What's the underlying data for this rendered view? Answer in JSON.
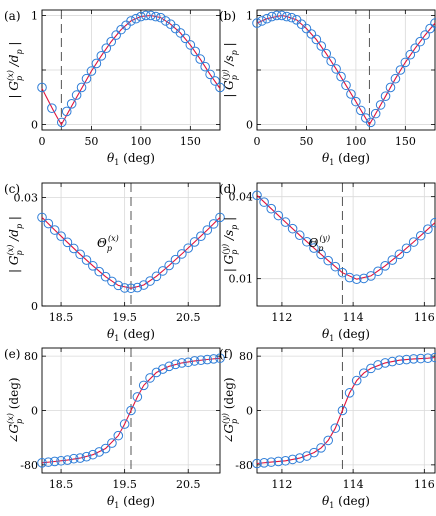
{
  "chart_data": [
    {
      "panel": "(a)",
      "type": "line",
      "xlabel": "θ1 (deg)",
      "ylabel": "|G_p^(x)/d_p|",
      "xlim": [
        0,
        180
      ],
      "ylim": [
        -0.05,
        1.05
      ],
      "xticks": [
        0,
        50,
        100,
        150
      ],
      "yticks": [
        0,
        0.5,
        1
      ],
      "xtick_labels": [
        "0",
        "50",
        "100",
        "150"
      ],
      "ytick_labels": [
        "0",
        "",
        "1"
      ],
      "vline": 19.6,
      "grid": true,
      "series": [
        {
          "style": "solid red line",
          "x": [
            0,
            4,
            8,
            12,
            16,
            19.6,
            24,
            30,
            40,
            50,
            60,
            70,
            80,
            90,
            100,
            110,
            120,
            130,
            140,
            150,
            160,
            170,
            180
          ],
          "y": [
            0.33,
            0.26,
            0.19,
            0.12,
            0.055,
            0.0,
            0.07,
            0.17,
            0.33,
            0.49,
            0.63,
            0.76,
            0.87,
            0.95,
            0.99,
            1.0,
            0.98,
            0.92,
            0.84,
            0.73,
            0.6,
            0.46,
            0.33
          ]
        },
        {
          "style": "blue circles",
          "x": [
            0,
            10,
            20,
            25,
            30,
            35,
            40,
            45,
            50,
            55,
            60,
            65,
            70,
            75,
            80,
            85,
            90,
            95,
            100,
            105,
            110,
            115,
            120,
            125,
            130,
            135,
            140,
            145,
            150,
            155,
            160,
            165,
            170,
            175,
            180
          ],
          "y": [
            0.34,
            0.15,
            0.02,
            0.12,
            0.19,
            0.27,
            0.34,
            0.42,
            0.49,
            0.56,
            0.63,
            0.7,
            0.76,
            0.82,
            0.87,
            0.91,
            0.95,
            0.97,
            0.99,
            1.0,
            1.0,
            0.99,
            0.98,
            0.95,
            0.92,
            0.88,
            0.84,
            0.79,
            0.73,
            0.67,
            0.6,
            0.53,
            0.46,
            0.4,
            0.34
          ]
        }
      ]
    },
    {
      "panel": "(b)",
      "type": "line",
      "xlabel": "θ1 (deg)",
      "ylabel": "|G_p^(y)/s_p|",
      "xlim": [
        0,
        180
      ],
      "ylim": [
        -0.05,
        1.05
      ],
      "xticks": [
        0,
        50,
        100,
        150
      ],
      "yticks": [
        0,
        0.5,
        1
      ],
      "xtick_labels": [
        "0",
        "50",
        "100",
        "150"
      ],
      "ytick_labels": [
        "0",
        "",
        "1"
      ],
      "vline": 113.7,
      "grid": true,
      "series": [
        {
          "style": "solid red line",
          "x": [
            0,
            10,
            20,
            25,
            30,
            40,
            50,
            60,
            70,
            80,
            90,
            100,
            113.7,
            120,
            130,
            140,
            150,
            160,
            170,
            180
          ],
          "y": [
            0.93,
            0.97,
            0.99,
            1.0,
            0.99,
            0.96,
            0.88,
            0.78,
            0.65,
            0.51,
            0.36,
            0.21,
            0.0,
            0.1,
            0.26,
            0.42,
            0.57,
            0.7,
            0.82,
            0.93
          ]
        },
        {
          "style": "blue circles",
          "x": [
            0,
            5,
            10,
            15,
            20,
            25,
            30,
            35,
            40,
            45,
            50,
            55,
            60,
            65,
            70,
            75,
            80,
            85,
            90,
            95,
            100,
            105,
            110,
            115,
            120,
            125,
            130,
            135,
            140,
            145,
            150,
            155,
            160,
            165,
            170,
            175,
            180
          ],
          "y": [
            0.93,
            0.95,
            0.97,
            0.99,
            1.0,
            1.0,
            0.99,
            0.98,
            0.96,
            0.92,
            0.88,
            0.83,
            0.78,
            0.72,
            0.65,
            0.58,
            0.51,
            0.44,
            0.36,
            0.28,
            0.21,
            0.13,
            0.06,
            0.02,
            0.1,
            0.18,
            0.26,
            0.34,
            0.42,
            0.5,
            0.57,
            0.64,
            0.7,
            0.76,
            0.82,
            0.88,
            0.93
          ]
        }
      ]
    },
    {
      "panel": "(c)",
      "type": "line",
      "xlabel": "θ1 (deg)",
      "ylabel": "|G_p^(x)/d_p|",
      "xlim": [
        18.2,
        21.0
      ],
      "ylim": [
        0,
        0.034
      ],
      "xticks": [
        18.5,
        19.5,
        20.5
      ],
      "yticks": [
        0,
        0.03
      ],
      "xtick_labels": [
        "18.5",
        "19.5",
        "20.5"
      ],
      "ytick_labels": [
        "0",
        "0.03"
      ],
      "vline": 19.6,
      "annotation": "Θ_p^(x)",
      "grid": true,
      "series": [
        {
          "style": "solid red line",
          "x": [
            18.2,
            18.4,
            18.6,
            18.8,
            19.0,
            19.2,
            19.4,
            19.6,
            19.8,
            20.0,
            20.2,
            20.4,
            20.6,
            20.8,
            21.0
          ],
          "y": [
            0.0245,
            0.021,
            0.0176,
            0.0143,
            0.0111,
            0.0081,
            0.0057,
            0.0049,
            0.0058,
            0.0082,
            0.0112,
            0.0144,
            0.0177,
            0.021,
            0.0245
          ]
        },
        {
          "style": "blue circles",
          "x": [
            18.2,
            18.3,
            18.4,
            18.5,
            18.6,
            18.7,
            18.8,
            18.9,
            19.0,
            19.1,
            19.2,
            19.3,
            19.4,
            19.5,
            19.6,
            19.7,
            19.8,
            19.9,
            20.0,
            20.1,
            20.2,
            20.3,
            20.4,
            20.5,
            20.6,
            20.7,
            20.8,
            20.9,
            21.0
          ],
          "y": [
            0.0245,
            0.0228,
            0.021,
            0.0193,
            0.0176,
            0.0159,
            0.0143,
            0.0127,
            0.0111,
            0.0095,
            0.0081,
            0.0068,
            0.0057,
            0.005,
            0.0049,
            0.0051,
            0.0058,
            0.0069,
            0.0082,
            0.0097,
            0.0112,
            0.0128,
            0.0144,
            0.016,
            0.0177,
            0.0193,
            0.021,
            0.0227,
            0.0245
          ]
        }
      ]
    },
    {
      "panel": "(d)",
      "type": "line",
      "xlabel": "θ1 (deg)",
      "ylabel": "|G_p^(y)/s_p|",
      "xlim": [
        111.3,
        116.3
      ],
      "ylim": [
        0,
        0.045
      ],
      "xticks": [
        112,
        114,
        116
      ],
      "yticks": [
        0.01,
        0.04
      ],
      "xtick_labels": [
        "112",
        "114",
        "116"
      ],
      "ytick_labels": [
        "0.01",
        "0.04"
      ],
      "vline": 113.7,
      "annotation": "Θ_p^(y)",
      "grid": true,
      "series": [
        {
          "style": "solid red line",
          "x": [
            111.3,
            111.7,
            112.1,
            112.5,
            112.9,
            113.3,
            113.7,
            114.1,
            114.5,
            114.9,
            115.3,
            115.7,
            116.1,
            116.3
          ],
          "y": [
            0.0405,
            0.0356,
            0.0307,
            0.0259,
            0.0212,
            0.0166,
            0.0122,
            0.0098,
            0.011,
            0.0147,
            0.0189,
            0.0234,
            0.0281,
            0.0305
          ]
        },
        {
          "style": "blue circles",
          "x": [
            111.3,
            111.5,
            111.7,
            111.9,
            112.1,
            112.3,
            112.5,
            112.7,
            112.9,
            113.1,
            113.3,
            113.5,
            113.7,
            113.9,
            114.1,
            114.3,
            114.5,
            114.7,
            114.9,
            115.1,
            115.3,
            115.5,
            115.7,
            115.9,
            116.1,
            116.3
          ],
          "y": [
            0.0405,
            0.038,
            0.0356,
            0.0331,
            0.0307,
            0.0283,
            0.0259,
            0.0235,
            0.0212,
            0.0189,
            0.0166,
            0.0144,
            0.0122,
            0.0104,
            0.0098,
            0.0101,
            0.011,
            0.0127,
            0.0147,
            0.0168,
            0.0189,
            0.0211,
            0.0234,
            0.0257,
            0.0281,
            0.0305
          ]
        }
      ]
    },
    {
      "panel": "(e)",
      "type": "line",
      "xlabel": "θ1 (deg)",
      "ylabel": "∠G_p^(x) (deg)",
      "xlim": [
        18.2,
        21.0
      ],
      "ylim": [
        -92,
        92
      ],
      "xticks": [
        18.5,
        19.5,
        20.5
      ],
      "yticks": [
        -80,
        0,
        80
      ],
      "xtick_labels": [
        "18.5",
        "19.5",
        "20.5"
      ],
      "ytick_labels": [
        "-80",
        "0",
        "80"
      ],
      "vline": 19.6,
      "grid": true,
      "series": [
        {
          "style": "solid red line",
          "x": [
            18.2,
            18.4,
            18.6,
            18.8,
            19.0,
            19.2,
            19.4,
            19.5,
            19.6,
            19.7,
            19.8,
            20.0,
            20.2,
            20.4,
            20.6,
            20.8,
            21.0
          ],
          "y": [
            -77,
            -75,
            -73,
            -70,
            -65,
            -56,
            -37,
            -20,
            0,
            20,
            37,
            56,
            65,
            70,
            73,
            75,
            77
          ]
        },
        {
          "style": "blue circles",
          "x": [
            18.2,
            18.3,
            18.4,
            18.5,
            18.6,
            18.7,
            18.8,
            18.9,
            19.0,
            19.1,
            19.2,
            19.3,
            19.4,
            19.5,
            19.6,
            19.7,
            19.8,
            19.9,
            20.0,
            20.1,
            20.2,
            20.3,
            20.4,
            20.5,
            20.6,
            20.7,
            20.8,
            20.9,
            21.0
          ],
          "y": [
            -77,
            -76,
            -75,
            -74,
            -73,
            -71,
            -70,
            -68,
            -65,
            -61,
            -56,
            -48,
            -37,
            -20,
            0,
            20,
            37,
            48,
            56,
            61,
            65,
            68,
            70,
            71,
            73,
            74,
            75,
            76,
            77
          ]
        }
      ]
    },
    {
      "panel": "(f)",
      "type": "line",
      "xlabel": "θ1 (deg)",
      "ylabel": "∠G_p^(y) (deg)",
      "xlim": [
        111.3,
        116.3
      ],
      "ylim": [
        -92,
        92
      ],
      "xticks": [
        112,
        114,
        116
      ],
      "yticks": [
        -80,
        0,
        80
      ],
      "xtick_labels": [
        "112",
        "114",
        "116"
      ],
      "ytick_labels": [
        "-80",
        "0",
        "80"
      ],
      "vline": 113.7,
      "grid": true,
      "series": [
        {
          "style": "solid red line",
          "x": [
            111.3,
            111.7,
            112.1,
            112.5,
            112.9,
            113.1,
            113.3,
            113.5,
            113.7,
            113.9,
            114.1,
            114.3,
            114.5,
            114.9,
            115.3,
            115.7,
            116.1,
            116.3
          ],
          "y": [
            -78,
            -76,
            -74,
            -70,
            -62,
            -55,
            -44,
            -26,
            0,
            26,
            44,
            55,
            62,
            70,
            74,
            76,
            77,
            78
          ]
        },
        {
          "style": "blue circles",
          "x": [
            111.3,
            111.5,
            111.7,
            111.9,
            112.1,
            112.3,
            112.5,
            112.7,
            112.9,
            113.1,
            113.3,
            113.5,
            113.7,
            113.9,
            114.1,
            114.3,
            114.5,
            114.7,
            114.9,
            115.1,
            115.3,
            115.5,
            115.7,
            115.9,
            116.1,
            116.3
          ],
          "y": [
            -78,
            -77,
            -76,
            -75,
            -74,
            -72,
            -70,
            -67,
            -62,
            -55,
            -44,
            -26,
            0,
            26,
            44,
            55,
            62,
            67,
            70,
            72,
            74,
            75,
            76,
            76.5,
            77,
            78
          ]
        }
      ]
    }
  ],
  "colors": {
    "line": "#e0143c",
    "marker": "#2f7ed8",
    "grid": "#d9d9d9",
    "vline": "#555555"
  }
}
